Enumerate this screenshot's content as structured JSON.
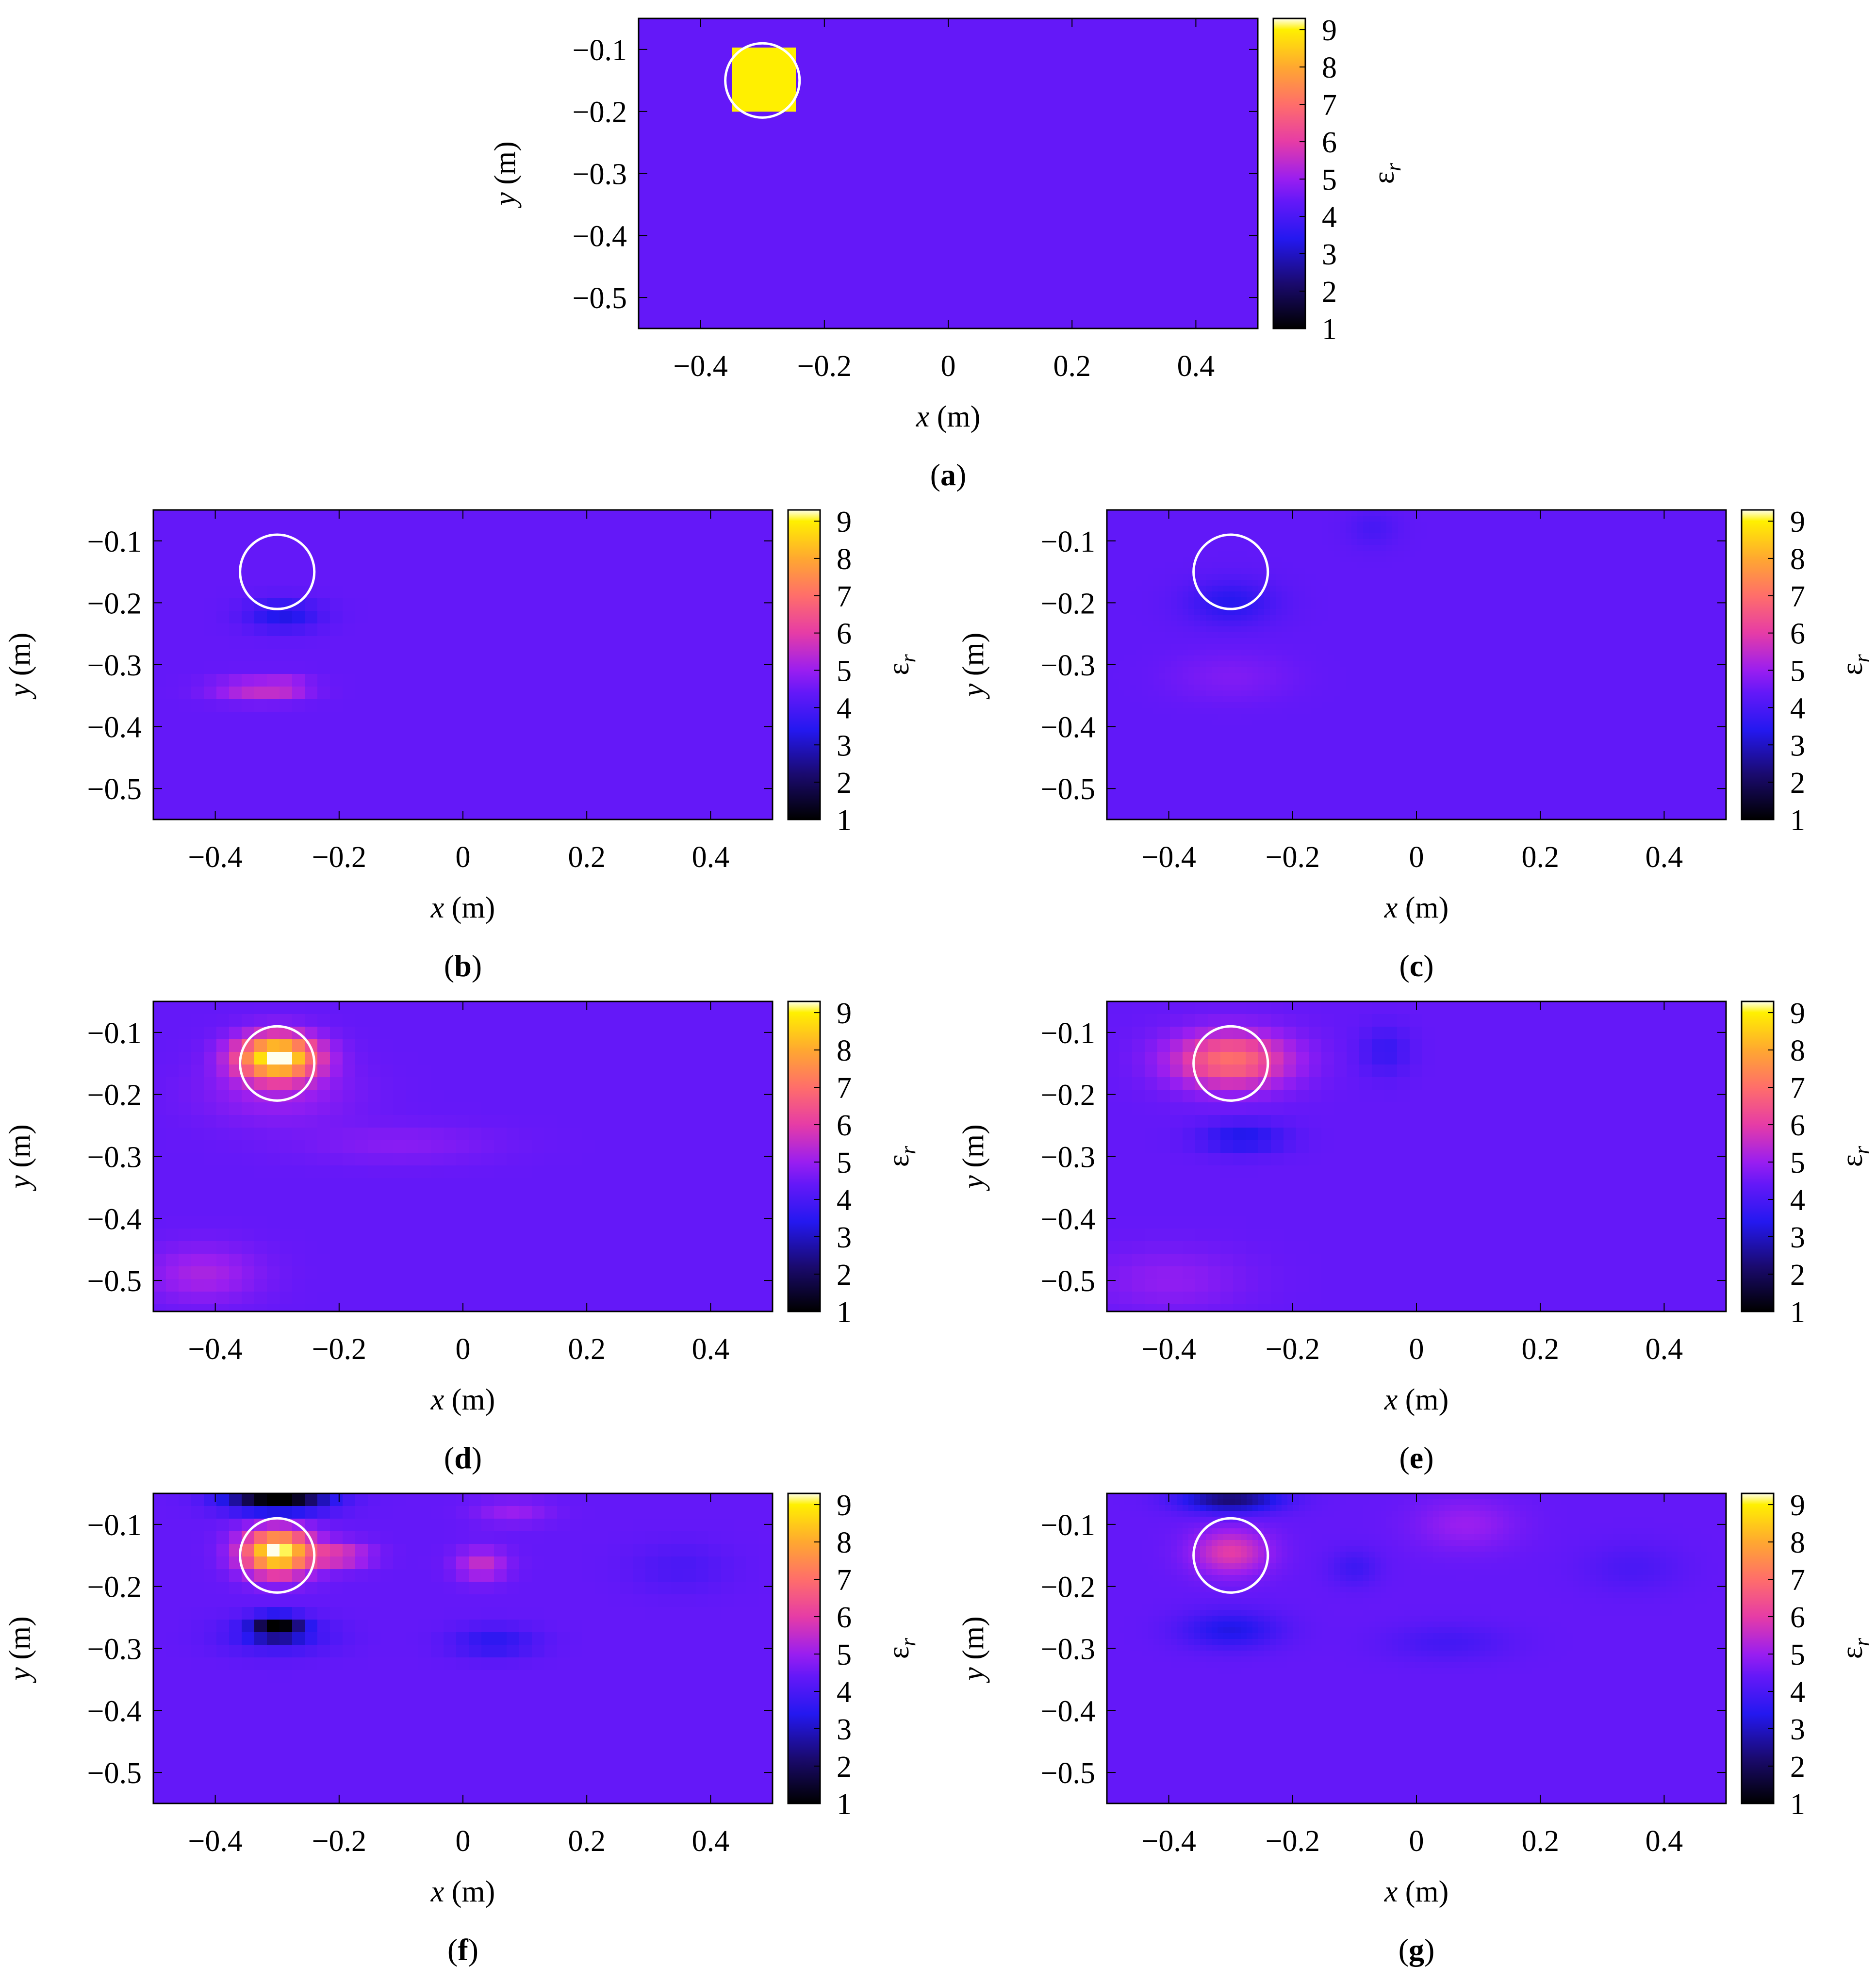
{
  "colorbar": {
    "label": "ε",
    "label_sub": "r",
    "ticks": [
      1,
      2,
      3,
      4,
      5,
      6,
      7,
      8,
      9
    ],
    "range": [
      1,
      9.3
    ],
    "stops": [
      {
        "v": 1.0,
        "c": "#000000"
      },
      {
        "v": 2.2,
        "c": "#1a0a6e"
      },
      {
        "v": 3.4,
        "c": "#2418f0"
      },
      {
        "v": 4.4,
        "c": "#6418f8"
      },
      {
        "v": 5.0,
        "c": "#9a1ef0"
      },
      {
        "v": 6.0,
        "c": "#e63ca6"
      },
      {
        "v": 7.0,
        "c": "#ff6e6a"
      },
      {
        "v": 8.0,
        "c": "#ffa830"
      },
      {
        "v": 9.0,
        "c": "#fff000"
      },
      {
        "v": 9.3,
        "c": "#ffffee"
      }
    ]
  },
  "chart_data": [
    {
      "id": "a",
      "caption": "a",
      "type": "heatmap",
      "xlabel": "x",
      "xunit": "(m)",
      "ylabel": "y",
      "yunit": "(m)",
      "xlim": [
        -0.5,
        0.5
      ],
      "ylim": [
        -0.55,
        -0.05
      ],
      "xticks": [
        "-0.4",
        "-0.2",
        "0",
        "0.2",
        "0.4"
      ],
      "xtick_values": [
        -0.4,
        -0.2,
        0,
        0.2,
        0.4
      ],
      "yticks": [
        "-0.1",
        "-0.2",
        "-0.3",
        "-0.4",
        "-0.5"
      ],
      "ytick_values": [
        -0.1,
        -0.2,
        -0.3,
        -0.4,
        -0.5
      ],
      "background": 4.4,
      "pixelated": false,
      "target_circle": {
        "cx": -0.3,
        "cy": -0.15,
        "r": 0.06
      },
      "features": [
        {
          "shape": "rect",
          "x0": -0.35,
          "x1": -0.25,
          "y0": -0.2,
          "y1": -0.1,
          "value": 9.0
        }
      ]
    },
    {
      "id": "b",
      "caption": "b",
      "type": "heatmap",
      "xlabel": "x",
      "xunit": "(m)",
      "ylabel": "y",
      "yunit": "(m)",
      "xlim": [
        -0.5,
        0.5
      ],
      "ylim": [
        -0.55,
        -0.05
      ],
      "xticks": [
        "-0.4",
        "-0.2",
        "0",
        "0.2",
        "0.4"
      ],
      "xtick_values": [
        -0.4,
        -0.2,
        0,
        0.2,
        0.4
      ],
      "yticks": [
        "-0.1",
        "-0.2",
        "-0.3",
        "-0.4",
        "-0.5"
      ],
      "ytick_values": [
        -0.1,
        -0.2,
        -0.3,
        -0.4,
        -0.5
      ],
      "background": 4.4,
      "pixelated": true,
      "target_circle": {
        "cx": -0.3,
        "cy": -0.15,
        "r": 0.06
      },
      "features": [
        {
          "x": -0.29,
          "y": -0.22,
          "sx": 0.06,
          "sy": 0.025,
          "amp": -1.1
        },
        {
          "x": -0.33,
          "y": -0.34,
          "sx": 0.07,
          "sy": 0.018,
          "amp": 1.2
        },
        {
          "x": -0.28,
          "y": -0.335,
          "sx": 0.03,
          "sy": 0.015,
          "amp": 0.5
        }
      ]
    },
    {
      "id": "c",
      "caption": "c",
      "type": "heatmap",
      "xlabel": "x",
      "xunit": "(m)",
      "ylabel": "y",
      "yunit": "(m)",
      "xlim": [
        -0.5,
        0.5
      ],
      "ylim": [
        -0.55,
        -0.05
      ],
      "xticks": [
        "-0.4",
        "-0.2",
        "0",
        "0.2",
        "0.4"
      ],
      "xtick_values": [
        -0.4,
        -0.2,
        0,
        0.2,
        0.4
      ],
      "yticks": [
        "-0.1",
        "-0.2",
        "-0.3",
        "-0.4",
        "-0.5"
      ],
      "ytick_values": [
        -0.1,
        -0.2,
        -0.3,
        -0.4,
        -0.5
      ],
      "background": 4.35,
      "pixelated": false,
      "target_circle": {
        "cx": -0.3,
        "cy": -0.15,
        "r": 0.06
      },
      "features": [
        {
          "x": -0.3,
          "y": -0.2,
          "sx": 0.07,
          "sy": 0.035,
          "amp": -0.9
        },
        {
          "x": -0.07,
          "y": -0.08,
          "sx": 0.04,
          "sy": 0.03,
          "amp": -0.4
        },
        {
          "x": -0.3,
          "y": -0.32,
          "sx": 0.1,
          "sy": 0.04,
          "amp": 0.35
        }
      ]
    },
    {
      "id": "d",
      "caption": "d",
      "type": "heatmap",
      "xlabel": "x",
      "xunit": "(m)",
      "ylabel": "y",
      "yunit": "(m)",
      "xlim": [
        -0.5,
        0.5
      ],
      "ylim": [
        -0.55,
        -0.05
      ],
      "xticks": [
        "-0.4",
        "-0.2",
        "0",
        "0.2",
        "0.4"
      ],
      "xtick_values": [
        -0.4,
        -0.2,
        0,
        0.2,
        0.4
      ],
      "yticks": [
        "-0.1",
        "-0.2",
        "-0.3",
        "-0.4",
        "-0.5"
      ],
      "ytick_values": [
        -0.1,
        -0.2,
        -0.3,
        -0.4,
        -0.5
      ],
      "background": 4.4,
      "pixelated": true,
      "target_circle": {
        "cx": -0.3,
        "cy": -0.15,
        "r": 0.06
      },
      "features": [
        {
          "x": -0.3,
          "y": -0.14,
          "sx": 0.065,
          "sy": 0.035,
          "amp": 5.0
        },
        {
          "x": -0.3,
          "y": -0.2,
          "sx": 0.12,
          "sy": 0.05,
          "amp": 0.6
        },
        {
          "x": -0.42,
          "y": -0.49,
          "sx": 0.09,
          "sy": 0.045,
          "amp": 0.8
        },
        {
          "x": -0.1,
          "y": -0.28,
          "sx": 0.15,
          "sy": 0.03,
          "amp": 0.4
        }
      ]
    },
    {
      "id": "e",
      "caption": "e",
      "type": "heatmap",
      "xlabel": "x",
      "xunit": "(m)",
      "ylabel": "y",
      "yunit": "(m)",
      "xlim": [
        -0.5,
        0.5
      ],
      "ylim": [
        -0.55,
        -0.05
      ],
      "xticks": [
        "-0.4",
        "-0.2",
        "0",
        "0.2",
        "0.4"
      ],
      "xtick_values": [
        -0.4,
        -0.2,
        0,
        0.2,
        0.4
      ],
      "yticks": [
        "-0.1",
        "-0.2",
        "-0.3",
        "-0.4",
        "-0.5"
      ],
      "ytick_values": [
        -0.1,
        -0.2,
        -0.3,
        -0.4,
        -0.5
      ],
      "background": 4.4,
      "pixelated": true,
      "target_circle": {
        "cx": -0.3,
        "cy": -0.15,
        "r": 0.06
      },
      "features": [
        {
          "x": -0.3,
          "y": -0.145,
          "sx": 0.095,
          "sy": 0.045,
          "amp": 2.6
        },
        {
          "x": -0.28,
          "y": -0.27,
          "sx": 0.07,
          "sy": 0.025,
          "amp": -1.1
        },
        {
          "x": -0.05,
          "y": -0.13,
          "sx": 0.04,
          "sy": 0.04,
          "amp": -0.7
        },
        {
          "x": -0.4,
          "y": -0.5,
          "sx": 0.12,
          "sy": 0.05,
          "amp": 0.5
        }
      ]
    },
    {
      "id": "f",
      "caption": "f",
      "type": "heatmap",
      "xlabel": "x",
      "xunit": "(m)",
      "ylabel": "y",
      "yunit": "(m)",
      "xlim": [
        -0.5,
        0.5
      ],
      "ylim": [
        -0.55,
        -0.05
      ],
      "xticks": [
        "-0.4",
        "-0.2",
        "0",
        "0.2",
        "0.4"
      ],
      "xtick_values": [
        -0.4,
        -0.2,
        0,
        0.2,
        0.4
      ],
      "yticks": [
        "-0.1",
        "-0.2",
        "-0.3",
        "-0.4",
        "-0.5"
      ],
      "ytick_values": [
        -0.1,
        -0.2,
        -0.3,
        -0.4,
        -0.5
      ],
      "background": 4.4,
      "pixelated": true,
      "target_circle": {
        "cx": -0.3,
        "cy": -0.15,
        "r": 0.06
      },
      "features": [
        {
          "x": -0.3,
          "y": -0.145,
          "sx": 0.055,
          "sy": 0.035,
          "amp": 5.0
        },
        {
          "x": -0.3,
          "y": -0.06,
          "sx": 0.08,
          "sy": 0.02,
          "amp": -3.6
        },
        {
          "x": -0.3,
          "y": -0.265,
          "sx": 0.04,
          "sy": 0.018,
          "amp": -3.0
        },
        {
          "x": -0.3,
          "y": -0.28,
          "sx": 0.09,
          "sy": 0.03,
          "amp": -0.9
        },
        {
          "x": 0.03,
          "y": -0.165,
          "sx": 0.04,
          "sy": 0.025,
          "amp": 1.2
        },
        {
          "x": 0.05,
          "y": -0.29,
          "sx": 0.07,
          "sy": 0.025,
          "amp": -0.9
        },
        {
          "x": -0.2,
          "y": -0.15,
          "sx": 0.05,
          "sy": 0.02,
          "amp": 1.5
        },
        {
          "x": 0.08,
          "y": -0.08,
          "sx": 0.06,
          "sy": 0.02,
          "amp": 0.6
        },
        {
          "x": 0.35,
          "y": -0.17,
          "sx": 0.08,
          "sy": 0.04,
          "amp": -0.4
        }
      ]
    },
    {
      "id": "g",
      "caption": "g",
      "type": "heatmap",
      "xlabel": "x",
      "xunit": "(m)",
      "ylabel": "y",
      "yunit": "(m)",
      "xlim": [
        -0.5,
        0.5
      ],
      "ylim": [
        -0.55,
        -0.05
      ],
      "xticks": [
        "-0.4",
        "-0.2",
        "0",
        "0.2",
        "0.4"
      ],
      "xtick_values": [
        -0.4,
        -0.2,
        0,
        0.2,
        0.4
      ],
      "yticks": [
        "-0.1",
        "-0.2",
        "-0.3",
        "-0.4",
        "-0.5"
      ],
      "ytick_values": [
        -0.1,
        -0.2,
        -0.3,
        -0.4,
        -0.5
      ],
      "background": 4.4,
      "pixelated": false,
      "target_circle": {
        "cx": -0.3,
        "cy": -0.15,
        "r": 0.06
      },
      "features": [
        {
          "x": -0.3,
          "y": -0.145,
          "sx": 0.06,
          "sy": 0.035,
          "amp": 1.6
        },
        {
          "x": -0.3,
          "y": -0.06,
          "sx": 0.08,
          "sy": 0.02,
          "amp": -2.2
        },
        {
          "x": -0.3,
          "y": -0.27,
          "sx": 0.08,
          "sy": 0.03,
          "amp": -1.1
        },
        {
          "x": 0.08,
          "y": -0.1,
          "sx": 0.08,
          "sy": 0.04,
          "amp": 0.6
        },
        {
          "x": -0.1,
          "y": -0.17,
          "sx": 0.04,
          "sy": 0.03,
          "amp": -0.6
        },
        {
          "x": 0.05,
          "y": -0.29,
          "sx": 0.1,
          "sy": 0.03,
          "amp": -0.5
        },
        {
          "x": 0.35,
          "y": -0.17,
          "sx": 0.08,
          "sy": 0.04,
          "amp": -0.4
        }
      ]
    }
  ]
}
